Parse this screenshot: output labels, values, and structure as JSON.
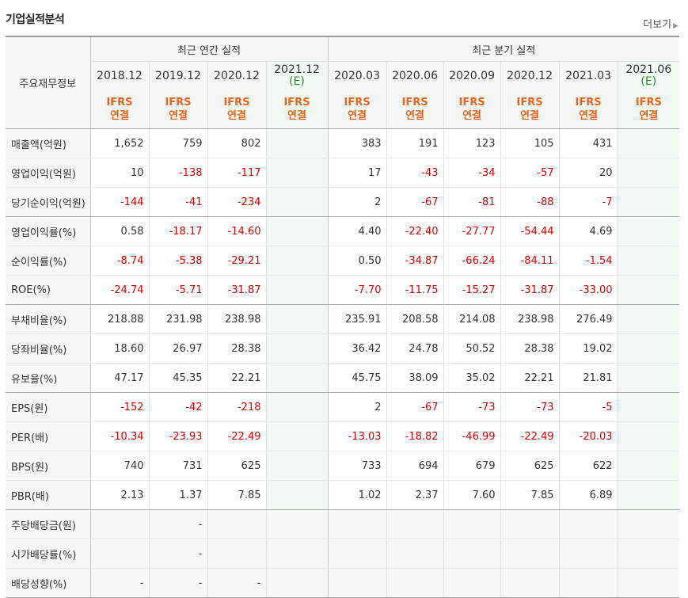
{
  "title": "기업실적분석",
  "more_label": "더보기",
  "header": {
    "row_label": "주요재무정보",
    "annual_group": "최근 연간 실적",
    "quarter_group": "최근 분기 실적",
    "periods": [
      {
        "date": "2018.12",
        "est": "",
        "std": "IFRS",
        "type": "연결"
      },
      {
        "date": "2019.12",
        "est": "",
        "std": "IFRS",
        "type": "연결"
      },
      {
        "date": "2020.12",
        "est": "",
        "std": "IFRS",
        "type": "연결"
      },
      {
        "date": "2021.12",
        "est": "(E)",
        "std": "IFRS",
        "type": "연결"
      },
      {
        "date": "2020.03",
        "est": "",
        "std": "IFRS",
        "type": "연결"
      },
      {
        "date": "2020.06",
        "est": "",
        "std": "IFRS",
        "type": "연결"
      },
      {
        "date": "2020.09",
        "est": "",
        "std": "IFRS",
        "type": "연결"
      },
      {
        "date": "2020.12",
        "est": "",
        "std": "IFRS",
        "type": "연결"
      },
      {
        "date": "2021.03",
        "est": "",
        "std": "IFRS",
        "type": "연결"
      },
      {
        "date": "2021.06",
        "est": "(E)",
        "std": "IFRS",
        "type": "연결"
      }
    ]
  },
  "rows": [
    {
      "label": "매출액(억원)",
      "values": [
        "1,652",
        "759",
        "802",
        "",
        "383",
        "191",
        "123",
        "105",
        "431",
        ""
      ]
    },
    {
      "label": "영업이익(억원)",
      "values": [
        "10",
        "-138",
        "-117",
        "",
        "17",
        "-43",
        "-34",
        "-57",
        "20",
        ""
      ]
    },
    {
      "label": "당기순이익(억원)",
      "values": [
        "-144",
        "-41",
        "-234",
        "",
        "2",
        "-67",
        "-81",
        "-88",
        "-7",
        ""
      ]
    },
    {
      "label": "영업이익률(%)",
      "values": [
        "0.58",
        "-18.17",
        "-14.60",
        "",
        "4.40",
        "-22.40",
        "-27.77",
        "-54.44",
        "4.69",
        ""
      ]
    },
    {
      "label": "순이익률(%)",
      "values": [
        "-8.74",
        "-5.38",
        "-29.21",
        "",
        "0.50",
        "-34.87",
        "-66.24",
        "-84.11",
        "-1.54",
        ""
      ]
    },
    {
      "label": "ROE(%)",
      "values": [
        "-24.74",
        "-5.71",
        "-31.87",
        "",
        "-7.70",
        "-11.75",
        "-15.27",
        "-31.87",
        "-33.00",
        ""
      ]
    },
    {
      "label": "부채비율(%)",
      "values": [
        "218.88",
        "231.98",
        "238.98",
        "",
        "235.91",
        "208.58",
        "214.08",
        "238.98",
        "276.49",
        ""
      ]
    },
    {
      "label": "당좌비율(%)",
      "values": [
        "18.60",
        "26.97",
        "28.38",
        "",
        "36.42",
        "24.78",
        "50.52",
        "28.38",
        "19.02",
        ""
      ]
    },
    {
      "label": "유보율(%)",
      "values": [
        "47.17",
        "45.35",
        "22.21",
        "",
        "45.75",
        "38.09",
        "35.02",
        "22.21",
        "21.81",
        ""
      ]
    },
    {
      "label": "EPS(원)",
      "values": [
        "-152",
        "-42",
        "-218",
        "",
        "2",
        "-67",
        "-73",
        "-73",
        "-5",
        ""
      ]
    },
    {
      "label": "PER(배)",
      "values": [
        "-10.34",
        "-23.93",
        "-22.49",
        "",
        "-13.03",
        "-18.82",
        "-46.99",
        "-22.49",
        "-20.03",
        ""
      ]
    },
    {
      "label": "BPS(원)",
      "values": [
        "740",
        "731",
        "625",
        "",
        "733",
        "694",
        "679",
        "625",
        "622",
        ""
      ]
    },
    {
      "label": "PBR(배)",
      "values": [
        "2.13",
        "1.37",
        "7.85",
        "",
        "1.02",
        "2.37",
        "7.60",
        "7.85",
        "6.89",
        ""
      ]
    },
    {
      "label": "주당배당금(원)",
      "values": [
        "",
        "-",
        "",
        "",
        "",
        "",
        "",
        "",
        "",
        ""
      ]
    },
    {
      "label": "시가배당률(%)",
      "values": [
        "",
        "-",
        "",
        "",
        "",
        "",
        "",
        "",
        "",
        ""
      ]
    },
    {
      "label": "배당성향(%)",
      "values": [
        "-",
        "-",
        "-",
        "",
        "",
        "",
        "",
        "",
        "",
        ""
      ]
    }
  ],
  "colors": {
    "negative": "#d60000",
    "ifrs": "#e8641a",
    "estimate_bg": "#f2f9f2",
    "estimate_mark": "#2f8f2f"
  }
}
